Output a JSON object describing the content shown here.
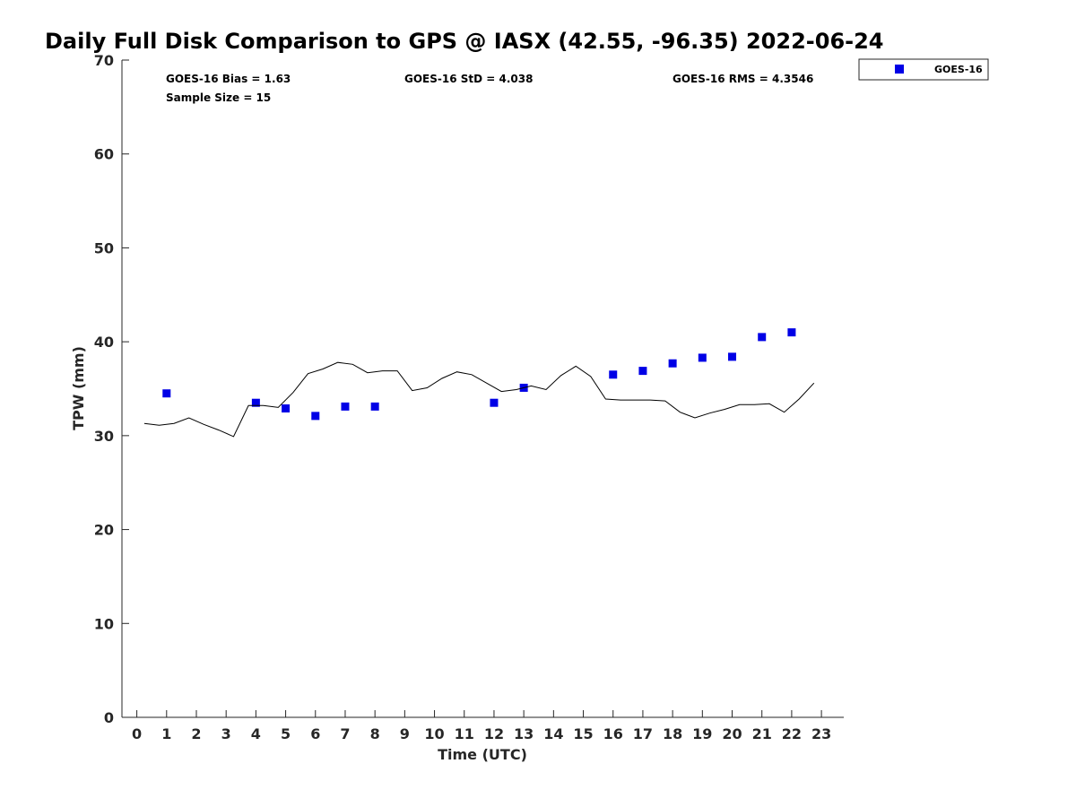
{
  "chart_data": {
    "type": "scatter",
    "title": "Daily Full Disk Comparison to GPS @ IASX (42.55, -96.35) 2022-06-24",
    "xlabel": "Time (UTC)",
    "ylabel": "TPW (mm)",
    "xlim": [
      -0.5,
      23.75
    ],
    "ylim": [
      0,
      70
    ],
    "xticks": [
      0,
      1,
      2,
      3,
      4,
      5,
      6,
      7,
      8,
      9,
      10,
      11,
      12,
      13,
      14,
      15,
      16,
      17,
      18,
      19,
      20,
      21,
      22,
      23
    ],
    "yticks": [
      0,
      10,
      20,
      30,
      40,
      50,
      60,
      70
    ],
    "legend_position": "outside-top-right",
    "stats": {
      "bias": "GOES-16 Bias = 1.63",
      "sample_size": "Sample Size = 15",
      "std": "GOES-16 StD = 4.038",
      "rms": "GOES-16 RMS = 4.3546"
    },
    "series": [
      {
        "name": "GOES-16",
        "kind": "markers",
        "color": "#0000e6",
        "x": [
          1,
          4,
          5,
          6,
          7,
          8,
          12,
          13,
          16,
          17,
          18,
          19,
          20,
          21,
          22
        ],
        "y": [
          34.5,
          33.5,
          32.9,
          32.1,
          33.1,
          33.1,
          33.5,
          35.1,
          36.5,
          36.9,
          37.7,
          38.3,
          38.4,
          40.5,
          41.0
        ]
      },
      {
        "kind": "line",
        "color": "#000000",
        "x": [
          0.25,
          0.75,
          1.25,
          1.75,
          2.25,
          2.75,
          3.25,
          3.75,
          4.25,
          4.75,
          5.25,
          5.75,
          6.25,
          6.75,
          7.25,
          7.75,
          8.25,
          8.75,
          9.25,
          9.75,
          10.25,
          10.75,
          11.25,
          11.75,
          12.25,
          12.75,
          13.25,
          13.75,
          14.25,
          14.75,
          15.25,
          15.75,
          16.25,
          16.75,
          17.25,
          17.75,
          18.25,
          18.75,
          19.25,
          19.75,
          20.25,
          20.75,
          21.25,
          21.75,
          22.25,
          22.75
        ],
        "y": [
          31.3,
          31.1,
          31.3,
          31.9,
          31.2,
          30.6,
          29.9,
          33.2,
          33.2,
          33.0,
          34.6,
          36.6,
          37.1,
          37.8,
          37.6,
          36.7,
          36.9,
          36.9,
          34.8,
          35.1,
          36.1,
          36.8,
          36.5,
          35.6,
          34.7,
          34.9,
          35.3,
          34.9,
          36.4,
          37.4,
          36.3,
          33.9,
          33.8,
          33.8,
          33.8,
          33.7,
          32.5,
          31.9,
          32.4,
          32.8,
          33.3,
          33.3,
          33.4,
          32.5,
          33.9,
          35.6
        ]
      }
    ]
  }
}
